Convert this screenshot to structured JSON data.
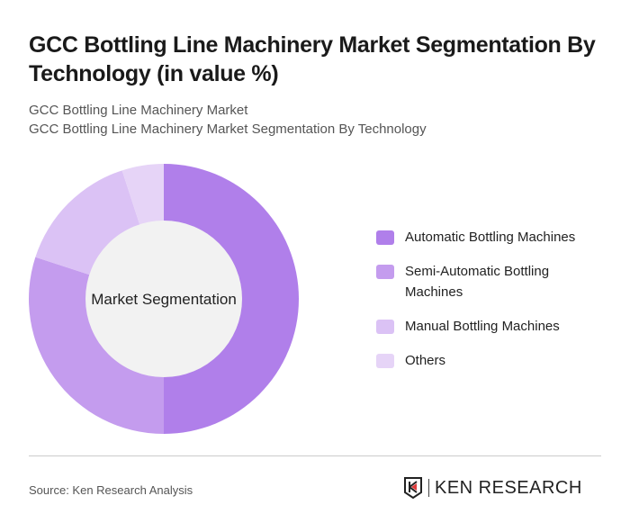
{
  "title": "GCC Bottling Line Machinery Market Segmentation By Technology (in value %)",
  "subtitles": [
    "GCC Bottling Line Machinery Market",
    "GCC Bottling Line Machinery Market Segmentation By Technology"
  ],
  "source": "Source: Ken Research Analysis",
  "logo": {
    "text": "KEN RESEARCH",
    "accent": "#e03c3c"
  },
  "chart_data": {
    "type": "pie",
    "variant": "donut",
    "center_label": "Market Segmentation",
    "categories": [
      "Automatic Bottling Machines",
      "Semi-Automatic Bottling Machines",
      "Manual Bottling Machines",
      "Others"
    ],
    "values": [
      50,
      30,
      15,
      5
    ],
    "colors": [
      "#b07fea",
      "#c49cee",
      "#dbc2f5",
      "#e6d4f7"
    ],
    "center_color": "#f2f2f2",
    "legend_position": "right"
  }
}
